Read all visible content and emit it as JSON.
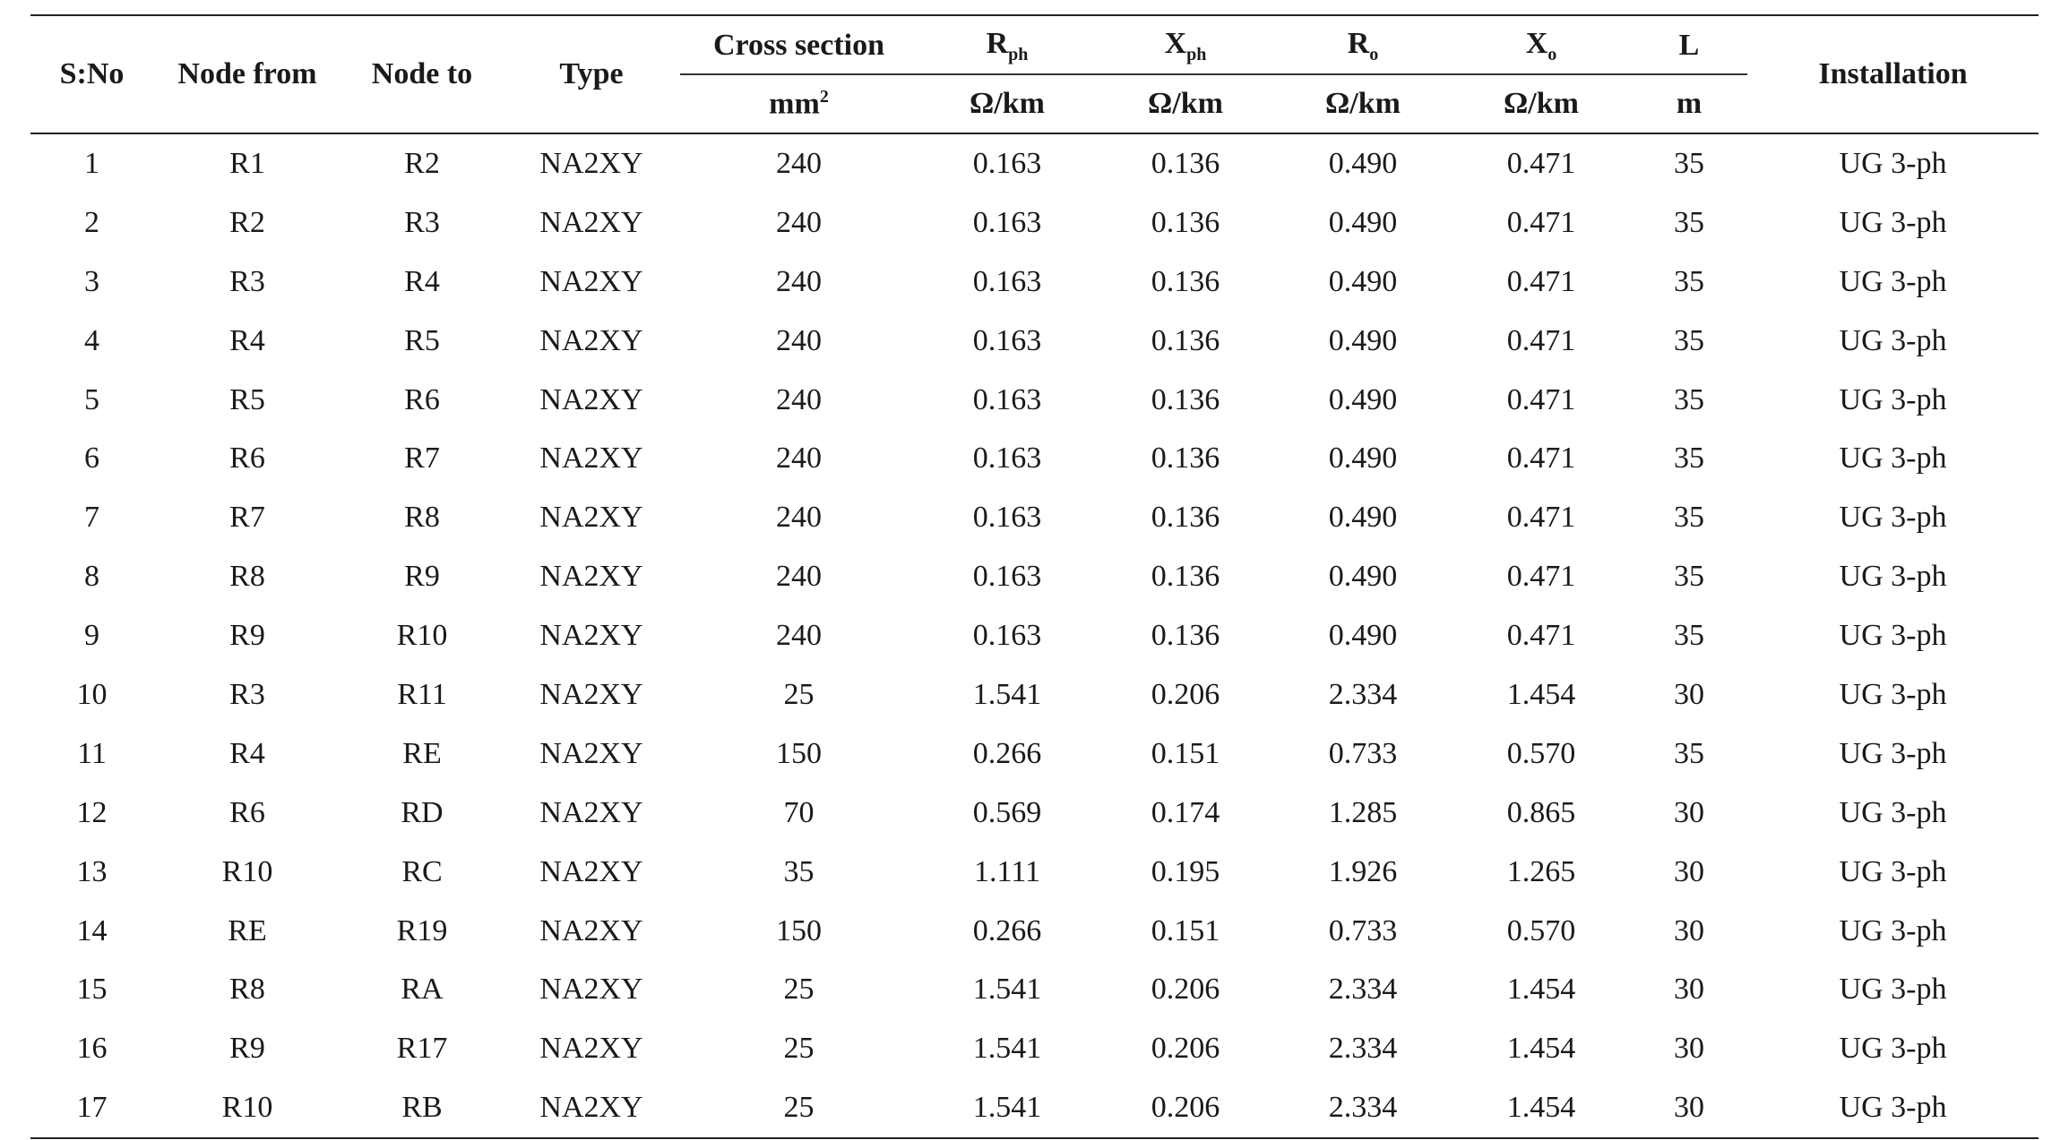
{
  "table": {
    "headers": {
      "sno": "S:No",
      "node_from": "Node from",
      "node_to": "Node to",
      "type": "Type",
      "cross_section": "Cross section",
      "r_ph_main": "R",
      "r_ph_sub": "ph",
      "x_ph_main": "X",
      "x_ph_sub": "ph",
      "r_o_main": "R",
      "r_o_sub": "o",
      "x_o_main": "X",
      "x_o_sub": "o",
      "l": "L",
      "installation": "Installation"
    },
    "units": {
      "cross_section_main": "mm",
      "cross_section_sup": "2",
      "r_ph": "Ω/km",
      "x_ph": "Ω/km",
      "r_o": "Ω/km",
      "x_o": "Ω/km",
      "l": "m"
    },
    "rows": [
      [
        "1",
        "R1",
        "R2",
        "NA2XY",
        "240",
        "0.163",
        "0.136",
        "0.490",
        "0.471",
        "35",
        "UG 3-ph"
      ],
      [
        "2",
        "R2",
        "R3",
        "NA2XY",
        "240",
        "0.163",
        "0.136",
        "0.490",
        "0.471",
        "35",
        "UG 3-ph"
      ],
      [
        "3",
        "R3",
        "R4",
        "NA2XY",
        "240",
        "0.163",
        "0.136",
        "0.490",
        "0.471",
        "35",
        "UG 3-ph"
      ],
      [
        "4",
        "R4",
        "R5",
        "NA2XY",
        "240",
        "0.163",
        "0.136",
        "0.490",
        "0.471",
        "35",
        "UG 3-ph"
      ],
      [
        "5",
        "R5",
        "R6",
        "NA2XY",
        "240",
        "0.163",
        "0.136",
        "0.490",
        "0.471",
        "35",
        "UG 3-ph"
      ],
      [
        "6",
        "R6",
        "R7",
        "NA2XY",
        "240",
        "0.163",
        "0.136",
        "0.490",
        "0.471",
        "35",
        "UG 3-ph"
      ],
      [
        "7",
        "R7",
        "R8",
        "NA2XY",
        "240",
        "0.163",
        "0.136",
        "0.490",
        "0.471",
        "35",
        "UG 3-ph"
      ],
      [
        "8",
        "R8",
        "R9",
        "NA2XY",
        "240",
        "0.163",
        "0.136",
        "0.490",
        "0.471",
        "35",
        "UG 3-ph"
      ],
      [
        "9",
        "R9",
        "R10",
        "NA2XY",
        "240",
        "0.163",
        "0.136",
        "0.490",
        "0.471",
        "35",
        "UG 3-ph"
      ],
      [
        "10",
        "R3",
        "R11",
        "NA2XY",
        "25",
        "1.541",
        "0.206",
        "2.334",
        "1.454",
        "30",
        "UG 3-ph"
      ],
      [
        "11",
        "R4",
        "RE",
        "NA2XY",
        "150",
        "0.266",
        "0.151",
        "0.733",
        "0.570",
        "35",
        "UG 3-ph"
      ],
      [
        "12",
        "R6",
        "RD",
        "NA2XY",
        "70",
        "0.569",
        "0.174",
        "1.285",
        "0.865",
        "30",
        "UG 3-ph"
      ],
      [
        "13",
        "R10",
        "RC",
        "NA2XY",
        "35",
        "1.111",
        "0.195",
        "1.926",
        "1.265",
        "30",
        "UG 3-ph"
      ],
      [
        "14",
        "RE",
        "R19",
        "NA2XY",
        "150",
        "0.266",
        "0.151",
        "0.733",
        "0.570",
        "30",
        "UG 3-ph"
      ],
      [
        "15",
        "R8",
        "RA",
        "NA2XY",
        "25",
        "1.541",
        "0.206",
        "2.334",
        "1.454",
        "30",
        "UG 3-ph"
      ],
      [
        "16",
        "R9",
        "R17",
        "NA2XY",
        "25",
        "1.541",
        "0.206",
        "2.334",
        "1.454",
        "30",
        "UG 3-ph"
      ],
      [
        "17",
        "R10",
        "RB",
        "NA2XY",
        "25",
        "1.541",
        "0.206",
        "2.334",
        "1.454",
        "30",
        "UG 3-ph"
      ]
    ]
  }
}
